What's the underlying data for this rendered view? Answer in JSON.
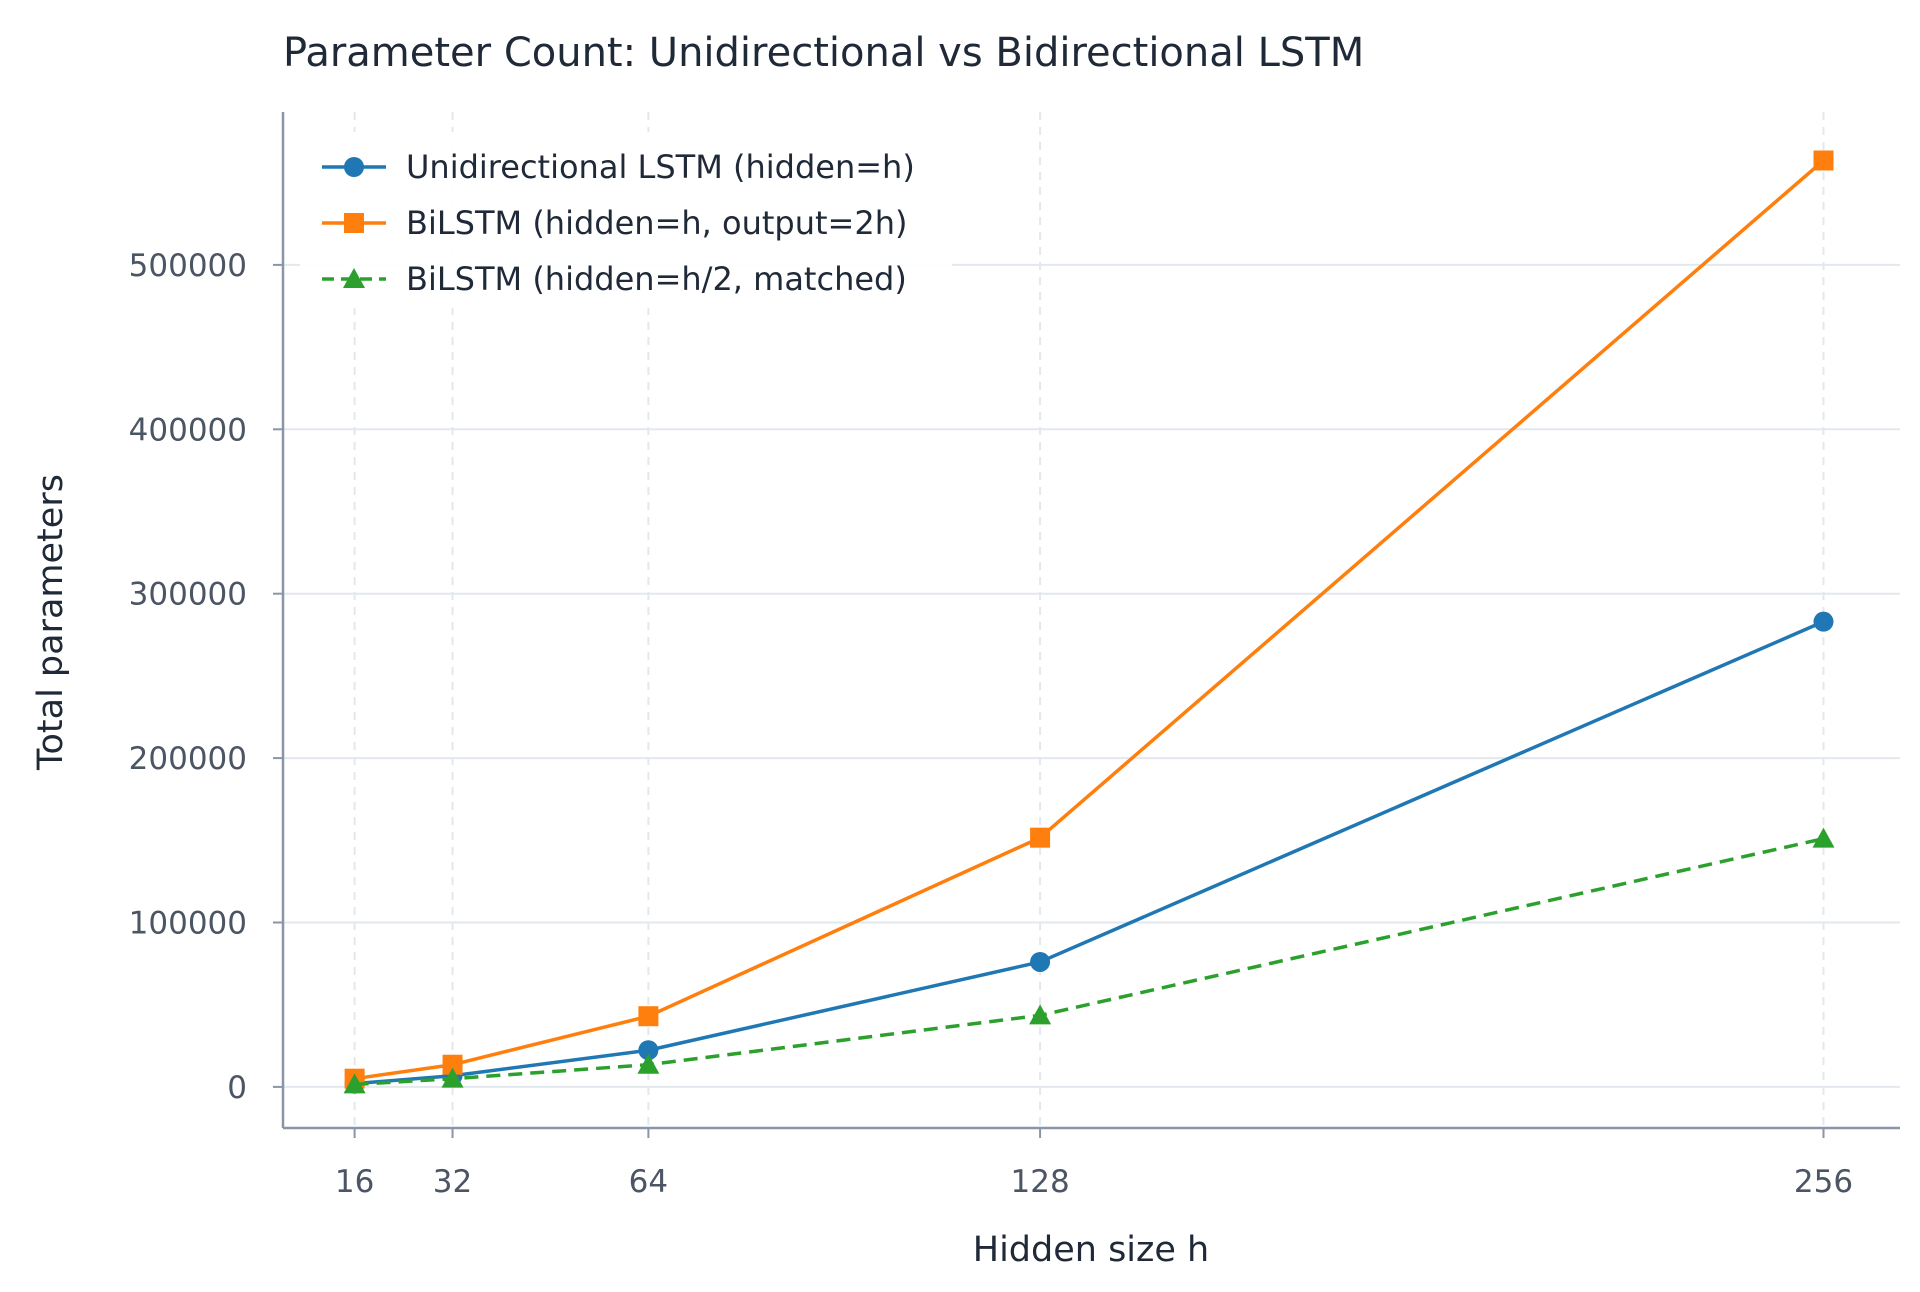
{
  "chart_data": {
    "type": "line",
    "title": "Parameter Count: Unidirectional vs Bidirectional LSTM",
    "xlabel": "Hidden size h",
    "ylabel": "Total parameters",
    "x": [
      16,
      32,
      64,
      128,
      256
    ],
    "x_ticks": [
      "16",
      "32",
      "64",
      "128",
      "256"
    ],
    "xlim": [
      4.3,
      268.5
    ],
    "y_ticks": [
      "0",
      "100000",
      "200000",
      "300000",
      "400000",
      "500000"
    ],
    "ylim": [
      -25000,
      593000
    ],
    "grid": true,
    "legend_position": "top-left",
    "series": [
      {
        "name": "Unidirectional LSTM (hidden=h)",
        "values": [
          2000,
          6800,
          22300,
          76000,
          283000
        ],
        "color": "#1f77b4",
        "marker": "circle",
        "dash": "solid"
      },
      {
        "name": "BiLSTM (hidden=h, output=2h)",
        "values": [
          5000,
          13500,
          43000,
          151600,
          563500
        ],
        "color": "#ff7f0e",
        "marker": "square",
        "dash": "solid"
      },
      {
        "name": "BiLSTM (hidden=h/2, matched)",
        "values": [
          1500,
          5000,
          13500,
          43500,
          151000
        ],
        "color": "#2ca02c",
        "marker": "triangle",
        "dash": "dashed"
      }
    ]
  }
}
